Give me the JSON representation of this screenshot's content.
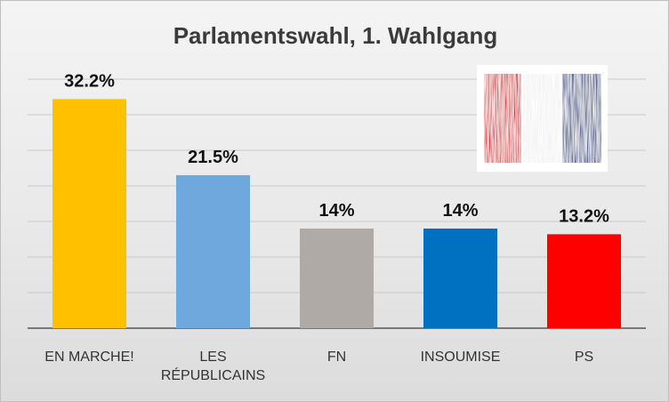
{
  "chart_data": {
    "type": "bar",
    "title": "Parlamentswahl, 1. Wahlgang",
    "categories": [
      [
        "EN MARCHE!"
      ],
      [
        "LES",
        "RÉPUBLICAINS"
      ],
      [
        "FN"
      ],
      [
        "INSOUMISE"
      ],
      [
        "PS"
      ]
    ],
    "values": [
      32.2,
      21.5,
      14,
      14,
      13.2
    ],
    "data_labels": [
      "32.2%",
      "21.5%",
      "14%",
      "14%",
      "13.2%"
    ],
    "colors": [
      "#ffc000",
      "#6fa8dc",
      "#b0aaa7",
      "#0070c0",
      "#ff0000"
    ],
    "xlabel": "",
    "ylabel": "",
    "ylim": [
      0,
      35
    ],
    "gridlines": [
      0,
      5,
      10,
      15,
      20,
      25,
      30,
      35
    ],
    "grid": true,
    "legend": "none",
    "y_tick_labels": "hidden"
  },
  "inset_image": {
    "name": "french-flag-painting",
    "colors": [
      "#d23a3a",
      "#ffffff",
      "#3a4f8a"
    ]
  }
}
